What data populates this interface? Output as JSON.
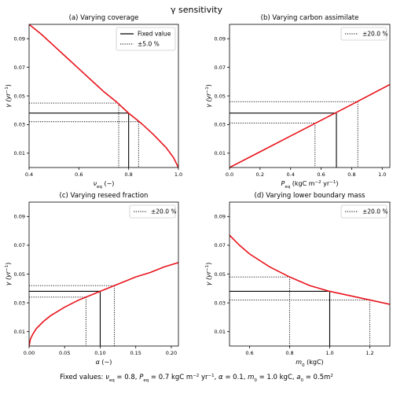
{
  "figure_title": "γ sensitivity",
  "footer": {
    "prefix": "Fixed values: ",
    "items": [
      {
        "sym": "ν",
        "sub": "eq",
        "val": " = 0.8,  "
      },
      {
        "sym": "P",
        "sub": "eq",
        "val": " = 0.7 kgC m",
        "sup": "−2",
        "val2": " yr",
        "sup2": "−1",
        "val3": ",  "
      },
      {
        "sym": "α",
        "val": " = 0.1,  "
      },
      {
        "sym": "m",
        "sub": "0",
        "val": " = 1.0 kgC,  "
      },
      {
        "sym": "a",
        "sub": "0",
        "val": " = 0.5m",
        "sup": "2"
      }
    ]
  },
  "colors": {
    "curve": "#e8141c",
    "axis": "#000000",
    "guide": "#000000"
  },
  "chart_data": [
    {
      "type": "line",
      "title": "(a) Varying coverage",
      "xlabel": {
        "main": "ν",
        "sub": "eq",
        "rest": " (−)"
      },
      "ylabel": {
        "main": "γ (yr",
        "sup": "−1",
        "rest": ")"
      },
      "xlim": [
        0.4,
        1.0
      ],
      "ylim": [
        0.0,
        0.1
      ],
      "xticks": [
        0.4,
        0.6,
        0.8,
        1.0
      ],
      "xtick_labels": [
        "0.4",
        "0.6",
        "0.8",
        "1.0"
      ],
      "yticks": [
        0.01,
        0.03,
        0.05,
        0.07,
        0.09
      ],
      "ytick_labels": [
        "0.01",
        "0.03",
        "0.05",
        "0.07",
        "0.09"
      ],
      "legend": {
        "placement": "top-right",
        "entries": [
          {
            "label": "Fixed value",
            "style": "solid"
          },
          {
            "label": "±5.0 %",
            "style": "dotted"
          }
        ]
      },
      "fixed": {
        "x": 0.8,
        "y": 0.038
      },
      "bounds": [
        {
          "x": 0.76,
          "y": 0.045
        },
        {
          "x": 0.84,
          "y": 0.032
        }
      ],
      "series": [
        {
          "x": [
            0.4,
            0.45,
            0.5,
            0.55,
            0.6,
            0.65,
            0.7,
            0.75,
            0.8,
            0.85,
            0.9,
            0.95,
            0.98,
            1.0
          ],
          "y": [
            0.1,
            0.093,
            0.085,
            0.077,
            0.069,
            0.061,
            0.053,
            0.046,
            0.038,
            0.031,
            0.023,
            0.014,
            0.007,
            0.0
          ]
        }
      ]
    },
    {
      "type": "line",
      "title": "(b) Varying carbon assimilate",
      "xlabel": {
        "main": "P",
        "sub": "eq",
        "rest": " (kgC m",
        "sup": "−2",
        "rest2": " yr",
        "sup2": "−1",
        "rest3": ")"
      },
      "ylabel": {
        "main": "γ (yr",
        "sup": "−1",
        "rest": ")"
      },
      "xlim": [
        0.0,
        1.05
      ],
      "ylim": [
        0.0,
        0.1
      ],
      "xticks": [
        0.0,
        0.2,
        0.4,
        0.6,
        0.8,
        1.0
      ],
      "xtick_labels": [
        "0.0",
        "0.2",
        "0.4",
        "0.6",
        "0.8",
        "1.0"
      ],
      "yticks": [
        0.01,
        0.03,
        0.05,
        0.07,
        0.09
      ],
      "ytick_labels": [
        "0.01",
        "0.03",
        "0.05",
        "0.07",
        "0.09"
      ],
      "legend": {
        "placement": "top-right",
        "entries": [
          {
            "label": "±20.0 %",
            "style": "dotted"
          }
        ]
      },
      "fixed": {
        "x": 0.7,
        "y": 0.038
      },
      "bounds": [
        {
          "x": 0.56,
          "y": 0.031
        },
        {
          "x": 0.84,
          "y": 0.046
        }
      ],
      "series": [
        {
          "x": [
            0.0,
            0.2,
            0.4,
            0.6,
            0.8,
            1.05
          ],
          "y": [
            0.0,
            0.011,
            0.022,
            0.033,
            0.044,
            0.058
          ]
        }
      ]
    },
    {
      "type": "line",
      "title": "(c) Varying reseed fraction",
      "xlabel": {
        "main": "α",
        "rest": " (−)"
      },
      "ylabel": {
        "main": "γ (yr",
        "sup": "−1",
        "rest": ")"
      },
      "xlim": [
        0.0,
        0.21
      ],
      "ylim": [
        0.0,
        0.1
      ],
      "xticks": [
        0.0,
        0.05,
        0.1,
        0.15,
        0.2
      ],
      "xtick_labels": [
        "0.00",
        "0.05",
        "0.10",
        "0.15",
        "0.20"
      ],
      "yticks": [
        0.01,
        0.03,
        0.05,
        0.07,
        0.09
      ],
      "ytick_labels": [
        "0.01",
        "0.03",
        "0.05",
        "0.07",
        "0.09"
      ],
      "legend": {
        "placement": "top-right",
        "entries": [
          {
            "label": "±20.0 %",
            "style": "dotted"
          }
        ]
      },
      "fixed": {
        "x": 0.1,
        "y": 0.038
      },
      "bounds": [
        {
          "x": 0.08,
          "y": 0.034
        },
        {
          "x": 0.12,
          "y": 0.042
        }
      ],
      "series": [
        {
          "x": [
            0.0,
            0.002,
            0.005,
            0.01,
            0.02,
            0.03,
            0.05,
            0.07,
            0.09,
            0.11,
            0.13,
            0.15,
            0.17,
            0.19,
            0.21
          ],
          "y": [
            0.0,
            0.005,
            0.008,
            0.012,
            0.017,
            0.021,
            0.027,
            0.032,
            0.036,
            0.04,
            0.044,
            0.048,
            0.051,
            0.055,
            0.058
          ]
        }
      ]
    },
    {
      "type": "line",
      "title": "(d) Varying lower boundary mass",
      "xlabel": {
        "main": "m",
        "sub": "0",
        "rest": " (kgC)"
      },
      "ylabel": {
        "main": "γ (yr",
        "sup": "−1",
        "rest": ")"
      },
      "xlim": [
        0.5,
        1.3
      ],
      "ylim": [
        0.0,
        0.1
      ],
      "xticks": [
        0.6,
        0.8,
        1.0,
        1.2
      ],
      "xtick_labels": [
        "0.6",
        "0.8",
        "1.0",
        "1.2"
      ],
      "yticks": [
        0.01,
        0.03,
        0.05,
        0.07,
        0.09
      ],
      "ytick_labels": [
        "0.01",
        "0.03",
        "0.05",
        "0.07",
        "0.09"
      ],
      "legend": {
        "placement": "top-right",
        "entries": [
          {
            "label": "±20.0 %",
            "style": "dotted"
          }
        ]
      },
      "fixed": {
        "x": 1.0,
        "y": 0.038
      },
      "bounds": [
        {
          "x": 0.8,
          "y": 0.048
        },
        {
          "x": 1.2,
          "y": 0.032
        }
      ],
      "series": [
        {
          "x": [
            0.5,
            0.55,
            0.6,
            0.7,
            0.8,
            0.9,
            1.0,
            1.1,
            1.2,
            1.3
          ],
          "y": [
            0.077,
            0.07,
            0.064,
            0.055,
            0.048,
            0.042,
            0.038,
            0.035,
            0.032,
            0.029
          ]
        }
      ]
    }
  ]
}
